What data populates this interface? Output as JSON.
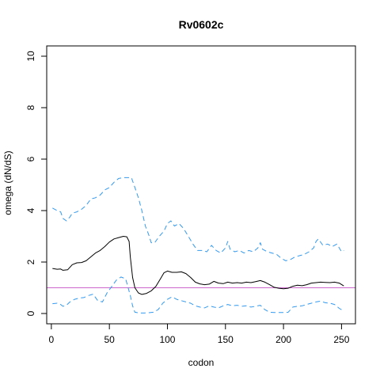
{
  "chart_data": {
    "type": "line",
    "title": "Rv0602c",
    "xlabel": "codon",
    "ylabel": "omega (dN/dS)",
    "xlim": [
      -4,
      262
    ],
    "ylim": [
      -0.4,
      10.4
    ],
    "xticks": [
      0,
      50,
      100,
      150,
      200,
      250
    ],
    "yticks": [
      0,
      2,
      4,
      6,
      8,
      10
    ],
    "reference_line": {
      "y": 1,
      "color": "#cc66cc"
    },
    "series": [
      {
        "role": "estimate",
        "color": "#000000",
        "dash": "solid",
        "points": [
          [
            1,
            1.75
          ],
          [
            5,
            1.72
          ],
          [
            8,
            1.73
          ],
          [
            10,
            1.68
          ],
          [
            14,
            1.7
          ],
          [
            18,
            1.9
          ],
          [
            22,
            1.97
          ],
          [
            26,
            1.98
          ],
          [
            30,
            2.05
          ],
          [
            34,
            2.2
          ],
          [
            38,
            2.35
          ],
          [
            42,
            2.45
          ],
          [
            46,
            2.6
          ],
          [
            50,
            2.78
          ],
          [
            54,
            2.9
          ],
          [
            58,
            2.95
          ],
          [
            62,
            3.0
          ],
          [
            65,
            2.98
          ],
          [
            67,
            2.8
          ],
          [
            68,
            2.2
          ],
          [
            70,
            1.4
          ],
          [
            72,
            1.0
          ],
          [
            75,
            0.8
          ],
          [
            78,
            0.74
          ],
          [
            82,
            0.78
          ],
          [
            86,
            0.88
          ],
          [
            90,
            1.05
          ],
          [
            94,
            1.35
          ],
          [
            97,
            1.58
          ],
          [
            100,
            1.65
          ],
          [
            104,
            1.6
          ],
          [
            108,
            1.6
          ],
          [
            112,
            1.62
          ],
          [
            116,
            1.55
          ],
          [
            120,
            1.4
          ],
          [
            124,
            1.22
          ],
          [
            128,
            1.15
          ],
          [
            132,
            1.12
          ],
          [
            136,
            1.14
          ],
          [
            140,
            1.25
          ],
          [
            144,
            1.18
          ],
          [
            148,
            1.16
          ],
          [
            152,
            1.22
          ],
          [
            156,
            1.18
          ],
          [
            160,
            1.2
          ],
          [
            164,
            1.18
          ],
          [
            168,
            1.22
          ],
          [
            172,
            1.2
          ],
          [
            176,
            1.24
          ],
          [
            180,
            1.28
          ],
          [
            184,
            1.22
          ],
          [
            188,
            1.12
          ],
          [
            192,
            1.02
          ],
          [
            196,
            0.98
          ],
          [
            200,
            0.96
          ],
          [
            204,
            0.98
          ],
          [
            208,
            1.06
          ],
          [
            212,
            1.1
          ],
          [
            216,
            1.08
          ],
          [
            220,
            1.12
          ],
          [
            224,
            1.18
          ],
          [
            228,
            1.2
          ],
          [
            232,
            1.22
          ],
          [
            236,
            1.21
          ],
          [
            240,
            1.2
          ],
          [
            244,
            1.22
          ],
          [
            248,
            1.18
          ],
          [
            252,
            1.07
          ]
        ]
      },
      {
        "role": "upper bound",
        "color": "#3399ee",
        "dash": "dashed",
        "points": [
          [
            1,
            4.1
          ],
          [
            5,
            4.0
          ],
          [
            8,
            3.95
          ],
          [
            10,
            3.7
          ],
          [
            13,
            3.6
          ],
          [
            16,
            3.75
          ],
          [
            18,
            3.9
          ],
          [
            22,
            3.95
          ],
          [
            26,
            4.05
          ],
          [
            30,
            4.2
          ],
          [
            34,
            4.45
          ],
          [
            38,
            4.5
          ],
          [
            42,
            4.6
          ],
          [
            46,
            4.8
          ],
          [
            50,
            4.9
          ],
          [
            54,
            5.1
          ],
          [
            58,
            5.25
          ],
          [
            62,
            5.28
          ],
          [
            66,
            5.28
          ],
          [
            69,
            5.28
          ],
          [
            72,
            4.9
          ],
          [
            75,
            4.5
          ],
          [
            78,
            4.0
          ],
          [
            81,
            3.4
          ],
          [
            84,
            3.05
          ],
          [
            86,
            2.75
          ],
          [
            89,
            2.75
          ],
          [
            93,
            3.0
          ],
          [
            97,
            3.2
          ],
          [
            100,
            3.5
          ],
          [
            103,
            3.6
          ],
          [
            106,
            3.4
          ],
          [
            110,
            3.5
          ],
          [
            114,
            3.3
          ],
          [
            118,
            3.0
          ],
          [
            122,
            2.7
          ],
          [
            126,
            2.45
          ],
          [
            130,
            2.45
          ],
          [
            134,
            2.4
          ],
          [
            138,
            2.65
          ],
          [
            142,
            2.45
          ],
          [
            146,
            2.35
          ],
          [
            150,
            2.55
          ],
          [
            152,
            2.8
          ],
          [
            154,
            2.5
          ],
          [
            158,
            2.4
          ],
          [
            162,
            2.45
          ],
          [
            166,
            2.35
          ],
          [
            170,
            2.45
          ],
          [
            174,
            2.4
          ],
          [
            178,
            2.55
          ],
          [
            180,
            2.75
          ],
          [
            182,
            2.5
          ],
          [
            186,
            2.4
          ],
          [
            190,
            2.35
          ],
          [
            194,
            2.3
          ],
          [
            198,
            2.15
          ],
          [
            202,
            2.05
          ],
          [
            206,
            2.1
          ],
          [
            210,
            2.2
          ],
          [
            214,
            2.25
          ],
          [
            218,
            2.3
          ],
          [
            222,
            2.4
          ],
          [
            226,
            2.55
          ],
          [
            228,
            2.8
          ],
          [
            230,
            2.9
          ],
          [
            234,
            2.65
          ],
          [
            238,
            2.7
          ],
          [
            242,
            2.6
          ],
          [
            246,
            2.7
          ],
          [
            248,
            2.55
          ],
          [
            250,
            2.4
          ],
          [
            252,
            2.45
          ]
        ]
      },
      {
        "role": "lower bound",
        "color": "#3399ee",
        "dash": "dashed",
        "points": [
          [
            1,
            0.38
          ],
          [
            5,
            0.4
          ],
          [
            8,
            0.35
          ],
          [
            10,
            0.28
          ],
          [
            13,
            0.32
          ],
          [
            16,
            0.45
          ],
          [
            20,
            0.55
          ],
          [
            24,
            0.6
          ],
          [
            28,
            0.62
          ],
          [
            32,
            0.7
          ],
          [
            36,
            0.75
          ],
          [
            40,
            0.5
          ],
          [
            44,
            0.45
          ],
          [
            48,
            0.8
          ],
          [
            52,
            1.05
          ],
          [
            56,
            1.3
          ],
          [
            60,
            1.42
          ],
          [
            64,
            1.35
          ],
          [
            68,
            0.7
          ],
          [
            70,
            0.3
          ],
          [
            72,
            0.05
          ],
          [
            76,
            0.02
          ],
          [
            80,
            0.02
          ],
          [
            84,
            0.03
          ],
          [
            88,
            0.05
          ],
          [
            92,
            0.15
          ],
          [
            96,
            0.4
          ],
          [
            100,
            0.55
          ],
          [
            104,
            0.65
          ],
          [
            108,
            0.55
          ],
          [
            112,
            0.5
          ],
          [
            116,
            0.45
          ],
          [
            120,
            0.4
          ],
          [
            124,
            0.3
          ],
          [
            128,
            0.25
          ],
          [
            132,
            0.22
          ],
          [
            136,
            0.3
          ],
          [
            140,
            0.25
          ],
          [
            144,
            0.22
          ],
          [
            148,
            0.3
          ],
          [
            152,
            0.35
          ],
          [
            156,
            0.3
          ],
          [
            160,
            0.32
          ],
          [
            164,
            0.28
          ],
          [
            168,
            0.3
          ],
          [
            172,
            0.25
          ],
          [
            176,
            0.28
          ],
          [
            180,
            0.32
          ],
          [
            184,
            0.15
          ],
          [
            188,
            0.05
          ],
          [
            192,
            0.04
          ],
          [
            196,
            0.04
          ],
          [
            200,
            0.04
          ],
          [
            204,
            0.05
          ],
          [
            208,
            0.25
          ],
          [
            212,
            0.28
          ],
          [
            216,
            0.3
          ],
          [
            220,
            0.35
          ],
          [
            224,
            0.4
          ],
          [
            228,
            0.45
          ],
          [
            232,
            0.48
          ],
          [
            236,
            0.42
          ],
          [
            240,
            0.4
          ],
          [
            244,
            0.35
          ],
          [
            248,
            0.2
          ],
          [
            252,
            0.1
          ]
        ]
      }
    ]
  }
}
